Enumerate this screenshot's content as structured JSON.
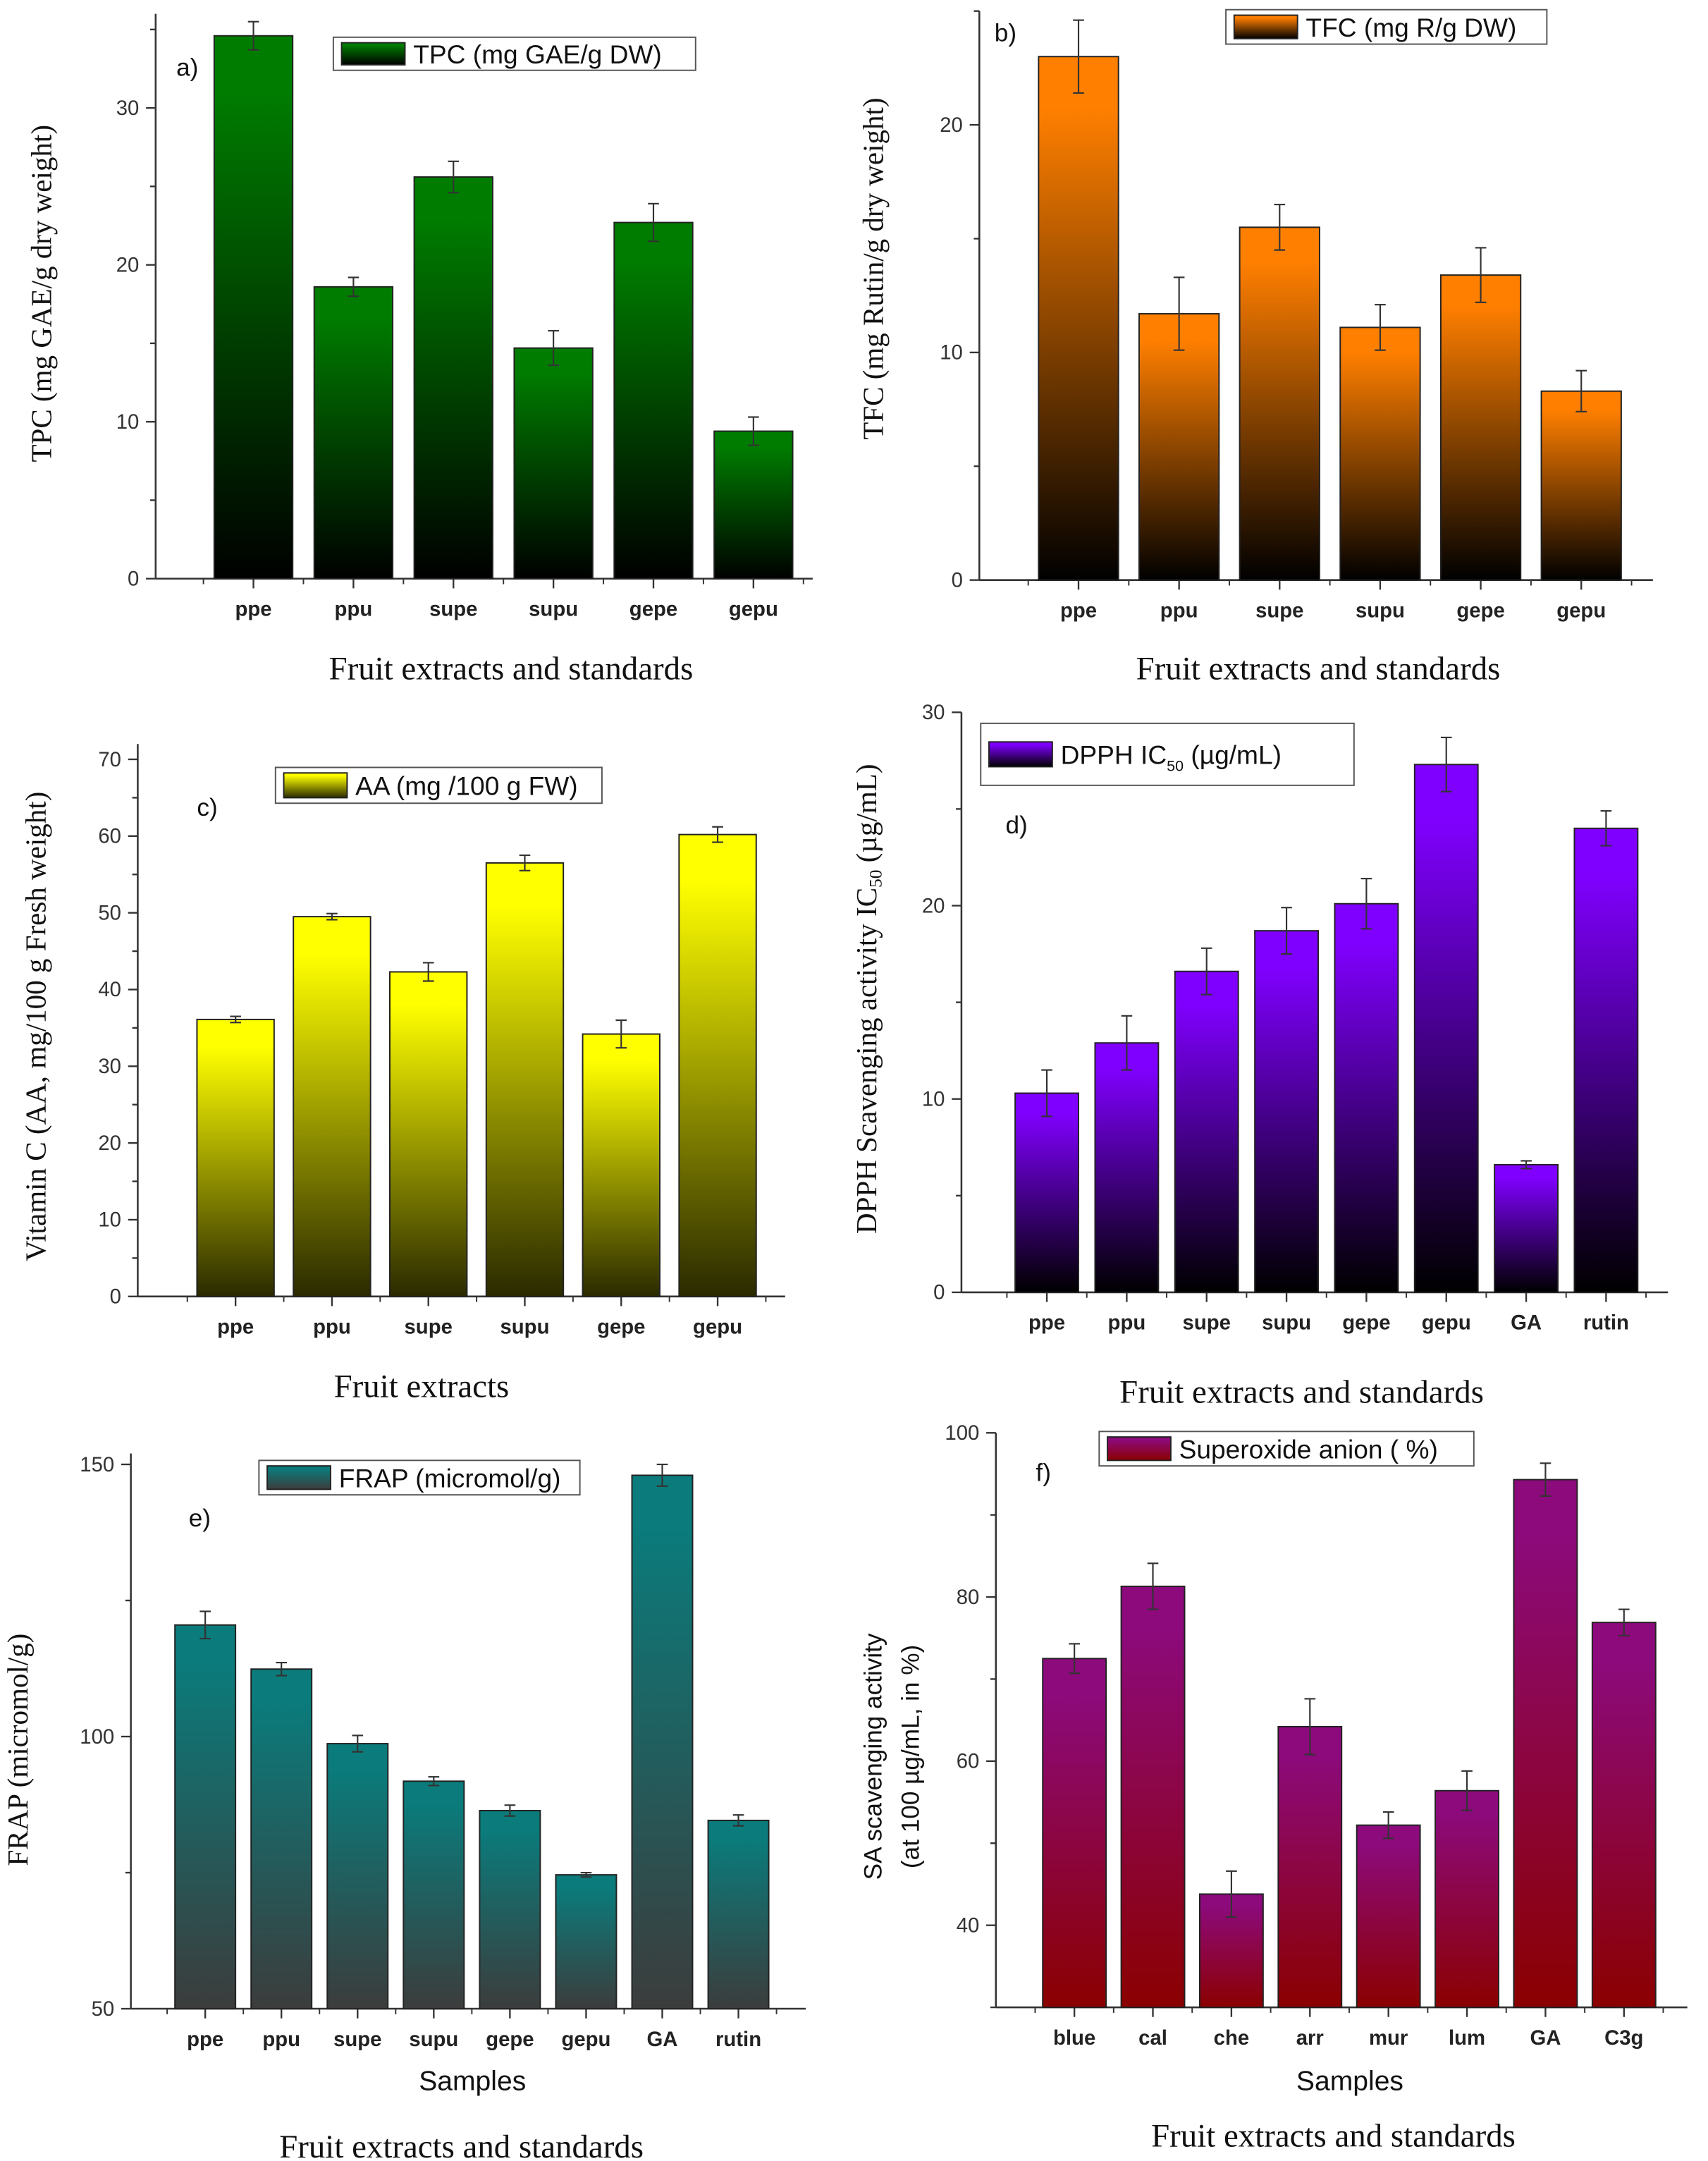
{
  "chart_data": [
    {
      "type": "bar",
      "panel": "a)",
      "legend": "TPC (mg GAE/g DW)",
      "ylabel": "TPC (mg GAE/g dry weight)",
      "xlabel": "Fruit extracts and standards",
      "ylim": [
        0,
        36
      ],
      "yticks": [
        0,
        10,
        20,
        30
      ],
      "categories": [
        "ppe",
        "ppu",
        "supe",
        "supu",
        "gepe",
        "gepu"
      ],
      "values": [
        34.6,
        18.6,
        25.6,
        14.7,
        22.7,
        9.4
      ],
      "errors": [
        0.9,
        0.6,
        1.0,
        1.1,
        1.2,
        0.9
      ],
      "colors": [
        "#007d00",
        "#000000"
      ]
    },
    {
      "type": "bar",
      "panel": "b)",
      "legend": "TFC (mg R/g DW)",
      "ylabel": "TFC (mg Rutin/g dry weight)",
      "xlabel": "Fruit extracts and standards",
      "ylim": [
        0,
        25
      ],
      "yticks": [
        0,
        10,
        20
      ],
      "categories": [
        "ppe",
        "ppu",
        "supe",
        "supu",
        "gepe",
        "gepu"
      ],
      "values": [
        23.0,
        11.7,
        15.5,
        11.1,
        13.4,
        8.3
      ],
      "errors": [
        1.6,
        1.6,
        1.0,
        1.0,
        1.2,
        0.9
      ],
      "colors": [
        "#ff7f00",
        "#000000"
      ]
    },
    {
      "type": "bar",
      "panel": "c)",
      "legend": "AA (mg /100 g FW)",
      "ylabel": "Vitamin C (AA, mg/100 g Fresh weight)",
      "xlabel": "Fruit extracts",
      "ylim": [
        0,
        72
      ],
      "yticks": [
        0,
        10,
        20,
        30,
        40,
        50,
        60,
        70
      ],
      "categories": [
        "ppe",
        "ppu",
        "supe",
        "supu",
        "gepe",
        "gepu"
      ],
      "values": [
        36.1,
        49.5,
        42.3,
        56.5,
        34.2,
        60.2
      ],
      "errors": [
        0.4,
        0.4,
        1.2,
        1.0,
        1.8,
        1.0
      ],
      "colors": [
        "#ffff00",
        "#2a2a00"
      ]
    },
    {
      "type": "bar",
      "panel": "d)",
      "legend": "DPPH IC50 (µg/mL)",
      "ylabel": "DPPH Scavenging activity IC50 (µg/mL)",
      "xlabel": "Fruit extracts and standards",
      "ylim": [
        0,
        30
      ],
      "yticks": [
        0,
        10,
        20,
        30
      ],
      "categories": [
        "ppe",
        "ppu",
        "supe",
        "supu",
        "gepe",
        "gepu",
        "GA",
        "rutin"
      ],
      "values": [
        10.3,
        12.9,
        16.6,
        18.7,
        20.1,
        27.3,
        6.6,
        24.0
      ],
      "errors": [
        1.2,
        1.4,
        1.2,
        1.2,
        1.3,
        1.4,
        0.2,
        0.9
      ],
      "colors": [
        "#8000ff",
        "#000000"
      ]
    },
    {
      "type": "bar",
      "panel": "e)",
      "legend": "FRAP (micromol/g)",
      "ylabel": "FRAP (micromol/g)",
      "xlabel": "Samples",
      "caption": "Fruit extracts and standards",
      "ylim": [
        50,
        152
      ],
      "yticks": [
        50,
        100,
        150
      ],
      "categories": [
        "ppe",
        "ppu",
        "supe",
        "supu",
        "gepe",
        "gepu",
        "GA",
        "rutin"
      ],
      "values": [
        120.5,
        112.4,
        98.7,
        91.8,
        86.4,
        74.6,
        148.0,
        84.6
      ],
      "errors": [
        2.5,
        1.2,
        1.5,
        0.8,
        1.0,
        0.4,
        2.0,
        1.0
      ],
      "colors": [
        "#0b7b7b",
        "#3c3c3c"
      ]
    },
    {
      "type": "bar",
      "panel": "f)",
      "legend": "Superoxide anion ( %)",
      "ylabel": "SA scavenging activity",
      "ylabel2": "(at 100 µg/mL, in %)",
      "xlabel": "Samples",
      "caption": "Fruit extracts and standards",
      "ylim": [
        30,
        100
      ],
      "yticks": [
        40,
        60,
        80,
        100
      ],
      "categories": [
        "blue",
        "cal",
        "che",
        "arr",
        "mur",
        "lum",
        "GA",
        "C3g"
      ],
      "values": [
        72.5,
        81.3,
        43.8,
        64.2,
        52.2,
        56.4,
        94.3,
        76.9
      ],
      "errors": [
        1.8,
        2.8,
        2.8,
        3.4,
        1.6,
        2.4,
        2.0,
        1.6
      ],
      "colors": [
        "#8c0a7c",
        "#8b0000"
      ]
    }
  ]
}
